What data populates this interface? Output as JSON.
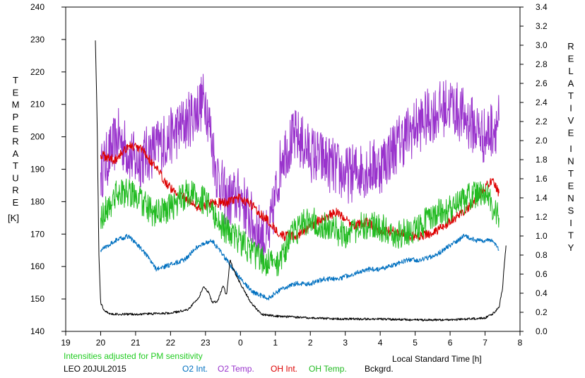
{
  "colors": {
    "o2_int": "#0070c0",
    "o2_temp": "#9933cc",
    "oh_int": "#dd0000",
    "oh_temp": "#22bb22",
    "bckgrd": "#000000",
    "note": "#22cc22"
  },
  "labels": {
    "left_axis_letters": [
      "T",
      "E",
      "M",
      "P",
      "E",
      "R",
      "A",
      "T",
      "U",
      "R",
      "E"
    ],
    "left_axis_unit": "[K]",
    "right_axis_letters_1": [
      "R",
      "E",
      "L",
      "A",
      "T",
      "I",
      "V",
      "E"
    ],
    "right_axis_letters_2": [
      "I",
      "N",
      "T",
      "E",
      "N",
      "S",
      "I",
      "T",
      "Y"
    ],
    "xlabel": "Local Standard Time [h]",
    "note": "Intensities adjusted for PM sensitivity",
    "site_date": "LEO 20JUL2015"
  },
  "legend": [
    {
      "label": "O2 Int.",
      "color_key": "o2_int"
    },
    {
      "label": "O2 Temp.",
      "color_key": "o2_temp"
    },
    {
      "label": "OH Int.",
      "color_key": "oh_int"
    },
    {
      "label": "OH Temp.",
      "color_key": "oh_temp"
    },
    {
      "label": "Bckgrd.",
      "color_key": "bckgrd"
    }
  ],
  "chart_data": {
    "type": "line",
    "xlabel": "Local Standard Time [h]",
    "ylabel": "TEMPERATURE [K]",
    "y2label": "RELATIVE INTENSITY",
    "xlim": [
      19,
      32
    ],
    "x_ticks": [
      "19",
      "20",
      "21",
      "22",
      "23",
      "0",
      "1",
      "2",
      "3",
      "4",
      "5",
      "6",
      "7",
      "8"
    ],
    "ylim": [
      140,
      240
    ],
    "y_ticks": [
      140,
      150,
      160,
      170,
      180,
      190,
      200,
      210,
      220,
      230,
      240
    ],
    "y2lim": [
      0,
      3.4
    ],
    "y2_ticks": [
      "0.0",
      "0.2",
      "0.4",
      "0.6",
      "0.8",
      "1.0",
      "1.2",
      "1.4",
      "1.6",
      "1.8",
      "2.0",
      "2.2",
      "2.4",
      "2.6",
      "2.8",
      "3.0",
      "3.2",
      "3.4"
    ],
    "grid": false,
    "series": [
      {
        "name": "O2 Temp.",
        "axis": "left",
        "color_key": "o2_temp",
        "x": [
          20.0,
          20.5,
          21.0,
          21.5,
          22.0,
          22.5,
          23.0,
          23.3,
          23.6,
          24.0,
          24.4,
          24.8,
          25.2,
          25.6,
          26.0,
          26.5,
          27.0,
          27.5,
          28.0,
          28.5,
          29.0,
          29.5,
          30.0,
          30.5,
          31.0,
          31.4
        ],
        "y": [
          189,
          200,
          192,
          196,
          200,
          205,
          212,
          190,
          180,
          182,
          172,
          168,
          195,
          200,
          195,
          192,
          188,
          190,
          191,
          198,
          203,
          207,
          210,
          205,
          200,
          205
        ],
        "volatility": 9
      },
      {
        "name": "OH Int.",
        "axis": "right",
        "color_key": "oh_int",
        "x": [
          20.0,
          20.4,
          20.8,
          21.2,
          21.6,
          22.0,
          22.4,
          22.8,
          23.2,
          23.6,
          24.0,
          24.4,
          24.8,
          25.2,
          25.6,
          26.0,
          26.4,
          26.8,
          27.2,
          27.6,
          28.0,
          28.4,
          28.8,
          29.2,
          29.6,
          30.0,
          30.4,
          30.8,
          31.2,
          31.4
        ],
        "y": [
          1.85,
          1.8,
          1.95,
          1.9,
          1.7,
          1.5,
          1.4,
          1.3,
          1.35,
          1.35,
          1.4,
          1.3,
          1.15,
          1.0,
          1.0,
          1.1,
          1.2,
          1.25,
          1.1,
          1.15,
          1.05,
          1.05,
          1.0,
          1.0,
          1.05,
          1.15,
          1.25,
          1.4,
          1.6,
          1.45
        ],
        "volatility": 0.05
      },
      {
        "name": "OH Temp.",
        "axis": "left",
        "color_key": "oh_temp",
        "x": [
          20.0,
          20.5,
          21.0,
          21.5,
          22.0,
          22.5,
          23.0,
          23.5,
          24.0,
          24.5,
          25.0,
          25.5,
          26.0,
          26.5,
          27.0,
          27.5,
          28.0,
          28.5,
          29.0,
          29.5,
          30.0,
          30.5,
          31.0,
          31.4
        ],
        "y": [
          175,
          183,
          182,
          176,
          178,
          183,
          180,
          172,
          168,
          163,
          160,
          170,
          175,
          172,
          170,
          173,
          172,
          170,
          171,
          176,
          178,
          181,
          183,
          175
        ],
        "volatility": 4.5
      },
      {
        "name": "O2 Int.",
        "axis": "right",
        "color_key": "o2_int",
        "x": [
          20.0,
          20.4,
          20.8,
          21.2,
          21.6,
          22.0,
          22.4,
          22.8,
          23.2,
          23.6,
          24.0,
          24.4,
          24.8,
          25.2,
          25.6,
          26.0,
          26.4,
          26.8,
          27.2,
          27.6,
          28.0,
          28.4,
          28.8,
          29.2,
          29.6,
          30.0,
          30.4,
          30.8,
          31.2,
          31.4
        ],
        "y": [
          0.85,
          0.95,
          1.0,
          0.85,
          0.65,
          0.7,
          0.75,
          0.9,
          0.95,
          0.75,
          0.55,
          0.4,
          0.35,
          0.45,
          0.5,
          0.5,
          0.55,
          0.55,
          0.6,
          0.65,
          0.65,
          0.7,
          0.75,
          0.75,
          0.8,
          0.9,
          1.0,
          0.95,
          0.95,
          0.85
        ],
        "volatility": 0.025
      },
      {
        "name": "Bckgrd.",
        "axis": "right",
        "color_key": "bckgrd",
        "x": [
          19.85,
          19.9,
          19.95,
          20.0,
          20.1,
          20.3,
          21.0,
          22.0,
          22.5,
          22.8,
          22.95,
          23.1,
          23.2,
          23.35,
          23.5,
          23.6,
          23.65,
          23.7,
          23.8,
          24.0,
          24.3,
          24.6,
          25.0,
          26.0,
          27.0,
          28.0,
          29.0,
          30.0,
          31.0,
          31.2,
          31.4,
          31.5,
          31.55,
          31.6
        ],
        "y": [
          3.05,
          2.2,
          0.8,
          0.3,
          0.22,
          0.18,
          0.18,
          0.19,
          0.23,
          0.35,
          0.47,
          0.4,
          0.3,
          0.32,
          0.48,
          0.38,
          0.55,
          0.75,
          0.65,
          0.5,
          0.3,
          0.18,
          0.16,
          0.14,
          0.13,
          0.13,
          0.12,
          0.12,
          0.14,
          0.18,
          0.25,
          0.45,
          0.7,
          0.9
        ],
        "volatility": 0.012
      }
    ]
  }
}
